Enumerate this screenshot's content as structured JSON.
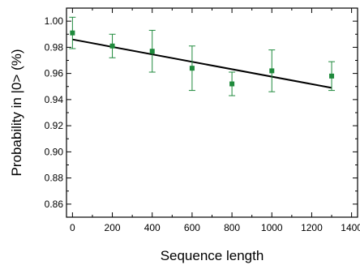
{
  "chart_data": {
    "type": "scatter",
    "xlabel": "Sequence  length",
    "ylabel": "Probability in |0> (%)",
    "xlim": [
      -30,
      1430
    ],
    "ylim": [
      0.85,
      1.01
    ],
    "xticks": [
      0,
      200,
      400,
      600,
      800,
      1000,
      1200,
      1400
    ],
    "xtick_labels": [
      "0",
      "200",
      "400",
      "600",
      "800",
      "1000",
      "1200",
      "1400"
    ],
    "yticks": [
      0.86,
      0.88,
      0.9,
      0.92,
      0.94,
      0.96,
      0.98,
      1.0
    ],
    "ytick_labels": [
      "0.86",
      "0.88",
      "0.90",
      "0.92",
      "0.94",
      "0.96",
      "0.98",
      "1.00"
    ],
    "grid": false,
    "series": [
      {
        "kind": "points_with_error_bars",
        "color": "#1f8a3c",
        "x": [
          0,
          200,
          400,
          600,
          800,
          1000,
          1300
        ],
        "y": [
          0.991,
          0.981,
          0.977,
          0.964,
          0.952,
          0.962,
          0.958
        ],
        "err": [
          0.012,
          0.009,
          0.016,
          0.017,
          0.009,
          0.016,
          0.011
        ]
      },
      {
        "kind": "fit_line",
        "color": "#000000",
        "x": [
          0,
          1300
        ],
        "y": [
          0.986,
          0.949
        ]
      }
    ]
  }
}
